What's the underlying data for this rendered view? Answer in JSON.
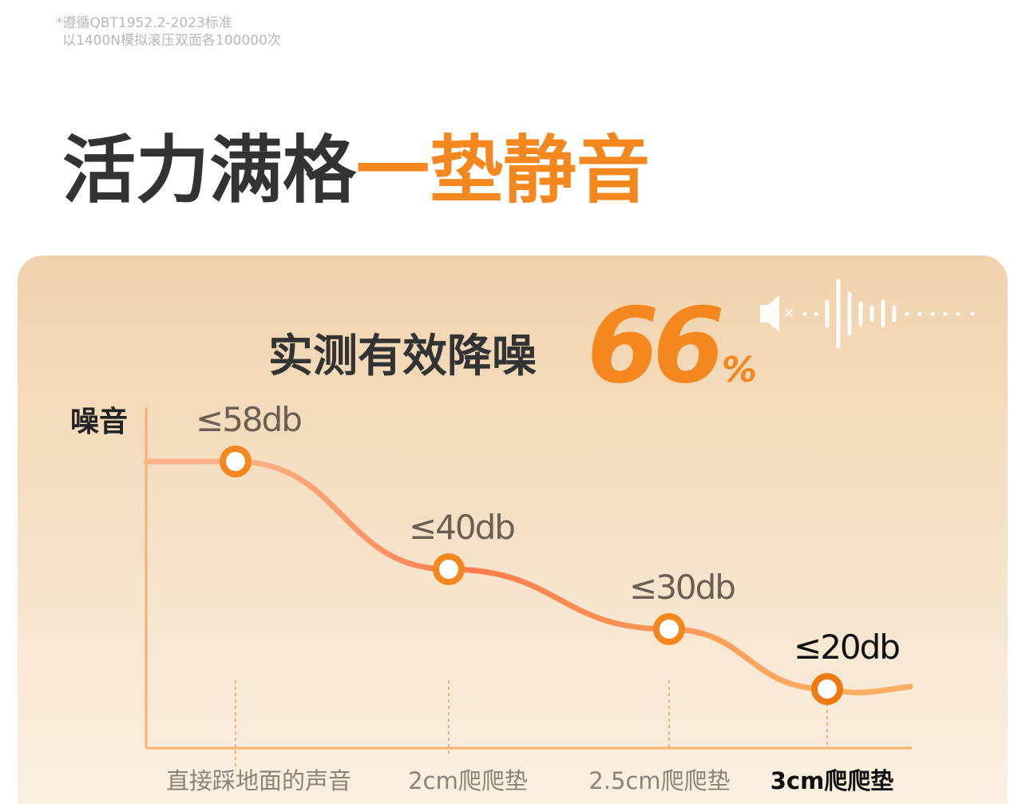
{
  "note": {
    "lines": [
      "*遵循QBT1952.2-2023标准",
      "以1400N模拟滚压双面各100000次"
    ]
  },
  "headline": {
    "dark": "活力满格",
    "accent": "一垫静音"
  },
  "reduction": {
    "label": "实测有效降噪",
    "value": "66",
    "unit": "%"
  },
  "chart_data": {
    "type": "line",
    "y_label": "噪音",
    "categories": [
      "直接踩地面的声音",
      "2cm爬爬垫",
      "2.5cm爬爬垫",
      "3cm爬爬垫"
    ],
    "values": [
      58,
      40,
      30,
      20
    ],
    "value_labels": [
      "≤58db",
      "≤40db",
      "≤30db",
      "≤20db"
    ],
    "color": "#f5871f"
  }
}
